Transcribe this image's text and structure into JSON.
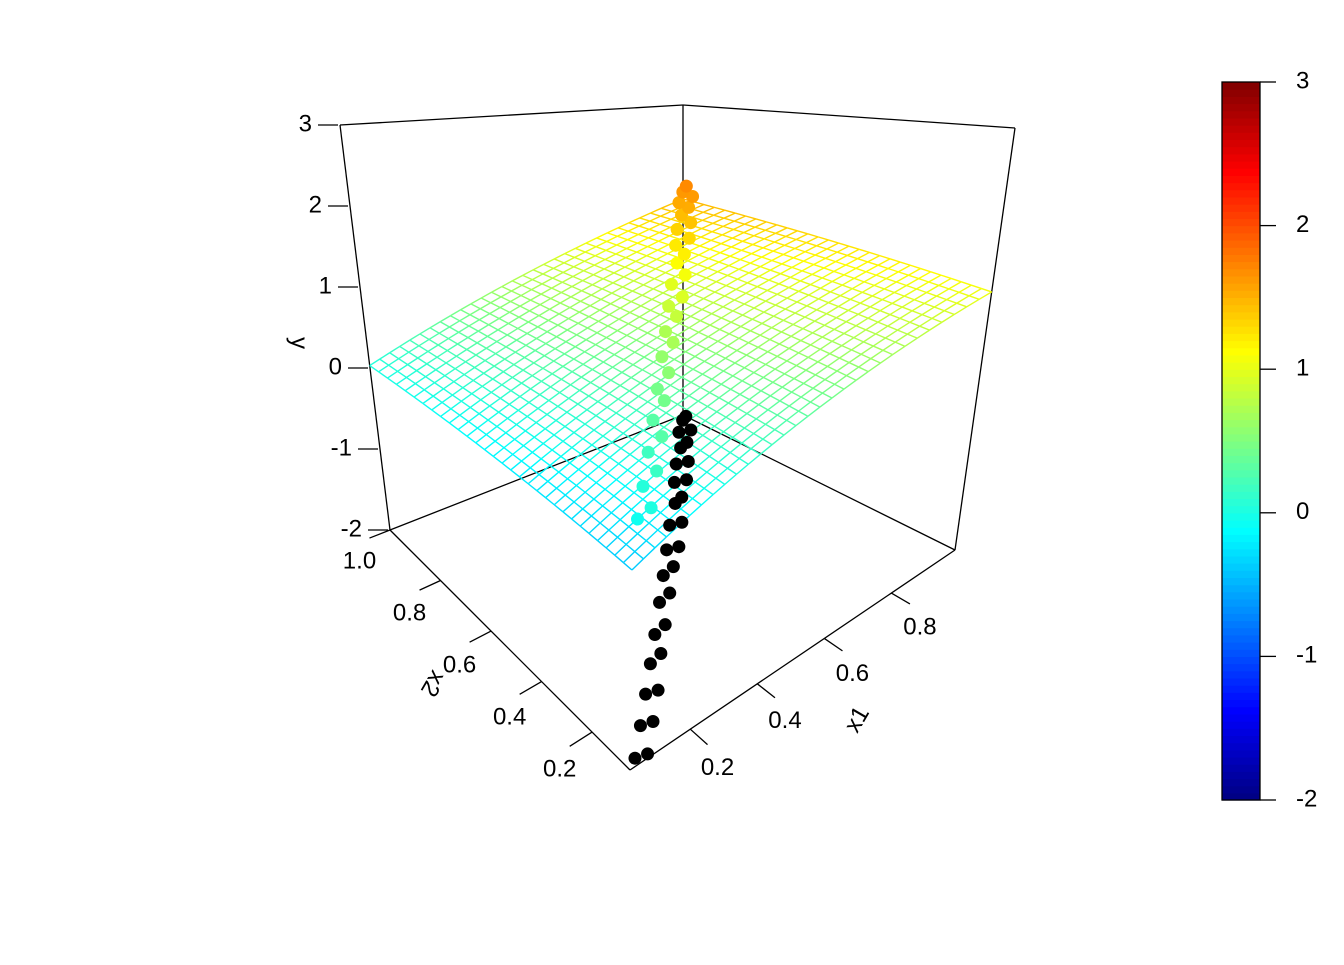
{
  "chart_data": {
    "type": "scatter3d",
    "xlabel": "x1",
    "ylabel": "x2",
    "zlabel": "y",
    "xlim": [
      0.02,
      0.99
    ],
    "ylim": [
      0.05,
      1.0
    ],
    "zlim": [
      -2,
      3
    ],
    "xticks": [
      0.2,
      0.4,
      0.6,
      0.8
    ],
    "yticks": [
      0.2,
      0.4,
      0.6,
      0.8,
      {
        "value": 1.0,
        "label": "1.0"
      }
    ],
    "zticks": [
      -2,
      -1,
      0,
      1,
      2,
      3
    ],
    "colorbar_ticks": [
      -2,
      -1,
      0,
      1,
      2,
      3
    ],
    "shadow_color": "#000000",
    "surface": {
      "intercept": -0.45,
      "x1": 1.5,
      "x2": 0.45
    },
    "points": {
      "x1": [
        0.05,
        0.08,
        0.12,
        0.15,
        0.19,
        0.22,
        0.26,
        0.3,
        0.33,
        0.37,
        0.41,
        0.45,
        0.48,
        0.52,
        0.55,
        0.58,
        0.62,
        0.65,
        0.69,
        0.72,
        0.75,
        0.78,
        0.81,
        0.84,
        0.87,
        0.9,
        0.92,
        0.95,
        0.97,
        0.99
      ],
      "x2": [
        0.07,
        0.06,
        0.14,
        0.13,
        0.21,
        0.2,
        0.28,
        0.29,
        0.35,
        0.36,
        0.43,
        0.44,
        0.5,
        0.51,
        0.57,
        0.56,
        0.64,
        0.63,
        0.7,
        0.71,
        0.77,
        0.76,
        0.83,
        0.82,
        0.88,
        0.89,
        0.94,
        0.93,
        0.98,
        0.99
      ],
      "y": [
        -0.05,
        0.02,
        0.05,
        0.16,
        0.18,
        0.3,
        0.31,
        0.44,
        0.45,
        0.56,
        0.6,
        0.7,
        0.72,
        0.84,
        0.86,
        0.95,
        0.98,
        1.08,
        1.12,
        1.2,
        1.23,
        1.31,
        1.34,
        1.42,
        1.45,
        1.53,
        1.54,
        1.62,
        1.63,
        1.7
      ]
    }
  }
}
